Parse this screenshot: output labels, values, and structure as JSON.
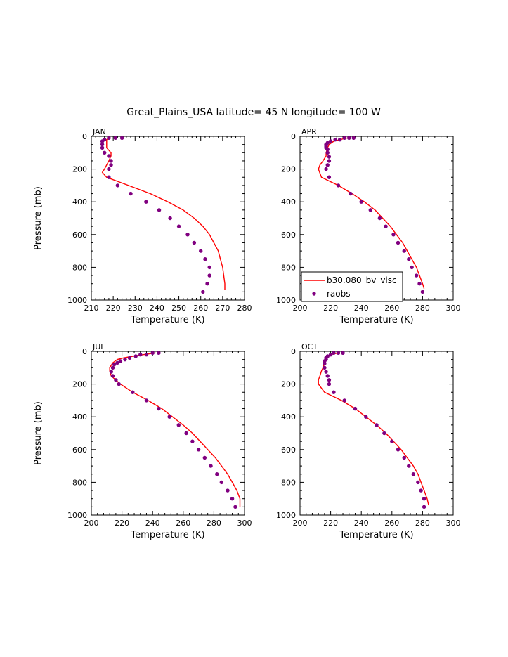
{
  "figure": {
    "title": "Great_Plains_USA  latitude= 45 N longitude= 100 W"
  },
  "colors": {
    "model": "#ff0000",
    "obs": "#800080",
    "axis": "#000000"
  },
  "legend": {
    "placement": "bottom-left of APR panel",
    "model_label": "b30.080_bv_visc",
    "obs_label": "raobs"
  },
  "chart_data": [
    {
      "type": "line",
      "panel": "JAN",
      "xlabel": "Temperature (K)",
      "ylabel": "Pressure (mb)",
      "xlim": [
        210,
        280
      ],
      "ylim": [
        1000,
        0
      ],
      "xticks": [
        210,
        220,
        230,
        240,
        250,
        260,
        270,
        280
      ],
      "yticks": [
        0,
        200,
        400,
        600,
        800,
        1000
      ],
      "series": [
        {
          "kind": "model",
          "points": [
            [
              218,
              10
            ],
            [
              217,
              20
            ],
            [
              217,
              30
            ],
            [
              217,
              50
            ],
            [
              217,
              70
            ],
            [
              219,
              100
            ],
            [
              219,
              120
            ],
            [
              218,
              150
            ],
            [
              216,
              200
            ],
            [
              215,
              220
            ],
            [
              217,
              250
            ],
            [
              227,
              300
            ],
            [
              237,
              350
            ],
            [
              245,
              400
            ],
            [
              252,
              450
            ],
            [
              257,
              500
            ],
            [
              261,
              550
            ],
            [
              264,
              600
            ],
            [
              266,
              650
            ],
            [
              268,
              700
            ],
            [
              269,
              750
            ],
            [
              270,
              800
            ],
            [
              270.5,
              850
            ],
            [
              271,
              900
            ],
            [
              271,
              940
            ]
          ]
        },
        {
          "kind": "obs",
          "points": [
            [
              224,
              10
            ],
            [
              221,
              10
            ],
            [
              218,
              10
            ],
            [
              216,
              20
            ],
            [
              215,
              30
            ],
            [
              215,
              50
            ],
            [
              215,
              70
            ],
            [
              216,
              100
            ],
            [
              218,
              120
            ],
            [
              219,
              150
            ],
            [
              219,
              175
            ],
            [
              218,
              200
            ],
            [
              218,
              250
            ],
            [
              222,
              300
            ],
            [
              228,
              350
            ],
            [
              235,
              400
            ],
            [
              241,
              450
            ],
            [
              246,
              500
            ],
            [
              250,
              550
            ],
            [
              254,
              600
            ],
            [
              257,
              650
            ],
            [
              260,
              700
            ],
            [
              262,
              750
            ],
            [
              264,
              800
            ],
            [
              264,
              850
            ],
            [
              263,
              900
            ],
            [
              261,
              950
            ]
          ]
        }
      ]
    },
    {
      "type": "line",
      "panel": "APR",
      "xlabel": "Temperature (K)",
      "ylabel": "",
      "xlim": [
        200,
        300
      ],
      "ylim": [
        1000,
        0
      ],
      "xticks": [
        200,
        220,
        240,
        260,
        280,
        300
      ],
      "yticks": [
        0,
        200,
        400,
        600,
        800,
        1000
      ],
      "series": [
        {
          "kind": "model",
          "points": [
            [
              231,
              10
            ],
            [
              226,
              20
            ],
            [
              222,
              30
            ],
            [
              219,
              50
            ],
            [
              218,
              70
            ],
            [
              217,
              100
            ],
            [
              217,
              120
            ],
            [
              215,
              150
            ],
            [
              213,
              175
            ],
            [
              212,
              200
            ],
            [
              214,
              250
            ],
            [
              225,
              300
            ],
            [
              234,
              350
            ],
            [
              242,
              400
            ],
            [
              249,
              450
            ],
            [
              254,
              500
            ],
            [
              259,
              550
            ],
            [
              263,
              600
            ],
            [
              267,
              650
            ],
            [
              270,
              700
            ],
            [
              273,
              750
            ],
            [
              276,
              800
            ],
            [
              278,
              850
            ],
            [
              280,
              900
            ],
            [
              281,
              930
            ]
          ]
        },
        {
          "kind": "obs",
          "points": [
            [
              235,
              10
            ],
            [
              232,
              10
            ],
            [
              229,
              10
            ],
            [
              226,
              20
            ],
            [
              223,
              20
            ],
            [
              220,
              30
            ],
            [
              218,
              40
            ],
            [
              217,
              50
            ],
            [
              217,
              60
            ],
            [
              217,
              70
            ],
            [
              218,
              80
            ],
            [
              218,
              100
            ],
            [
              219,
              125
            ],
            [
              219,
              150
            ],
            [
              218,
              175
            ],
            [
              217,
              200
            ],
            [
              219,
              250
            ],
            [
              225,
              300
            ],
            [
              233,
              350
            ],
            [
              240,
              400
            ],
            [
              246,
              450
            ],
            [
              252,
              500
            ],
            [
              256,
              550
            ],
            [
              261,
              600
            ],
            [
              264,
              650
            ],
            [
              268,
              700
            ],
            [
              271,
              750
            ],
            [
              273,
              800
            ],
            [
              276,
              850
            ],
            [
              278,
              900
            ],
            [
              280,
              950
            ]
          ]
        }
      ]
    },
    {
      "type": "line",
      "panel": "JUL",
      "xlabel": "Temperature (K)",
      "ylabel": "Pressure (mb)",
      "xlim": [
        200,
        300
      ],
      "ylim": [
        1000,
        0
      ],
      "xticks": [
        200,
        220,
        240,
        260,
        280,
        300
      ],
      "yticks": [
        0,
        200,
        400,
        600,
        800,
        1000
      ],
      "series": [
        {
          "kind": "model",
          "points": [
            [
              242,
              10
            ],
            [
              234,
              20
            ],
            [
              227,
              30
            ],
            [
              221,
              40
            ],
            [
              217,
              50
            ],
            [
              214,
              70
            ],
            [
              212,
              100
            ],
            [
              212,
              120
            ],
            [
              213,
              150
            ],
            [
              219,
              200
            ],
            [
              227,
              250
            ],
            [
              237,
              300
            ],
            [
              246,
              350
            ],
            [
              253,
              400
            ],
            [
              260,
              450
            ],
            [
              266,
              500
            ],
            [
              271,
              550
            ],
            [
              276,
              600
            ],
            [
              281,
              650
            ],
            [
              285,
              700
            ],
            [
              289,
              750
            ],
            [
              292,
              800
            ],
            [
              295,
              850
            ],
            [
              297,
              900
            ],
            [
              297,
              950
            ]
          ]
        },
        {
          "kind": "obs",
          "points": [
            [
              244,
              10
            ],
            [
              240,
              10
            ],
            [
              236,
              20
            ],
            [
              232,
              20
            ],
            [
              229,
              30
            ],
            [
              225,
              40
            ],
            [
              222,
              50
            ],
            [
              219,
              60
            ],
            [
              217,
              70
            ],
            [
              215,
              80
            ],
            [
              214,
              100
            ],
            [
              213,
              125
            ],
            [
              214,
              150
            ],
            [
              216,
              175
            ],
            [
              218,
              200
            ],
            [
              227,
              250
            ],
            [
              236,
              300
            ],
            [
              244,
              350
            ],
            [
              251,
              400
            ],
            [
              257,
              450
            ],
            [
              262,
              500
            ],
            [
              266,
              550
            ],
            [
              270,
              600
            ],
            [
              274,
              650
            ],
            [
              278,
              700
            ],
            [
              282,
              750
            ],
            [
              285,
              800
            ],
            [
              289,
              850
            ],
            [
              292,
              900
            ],
            [
              294,
              950
            ]
          ]
        }
      ]
    },
    {
      "type": "line",
      "panel": "OCT",
      "xlabel": "Temperature (K)",
      "ylabel": "",
      "xlim": [
        200,
        300
      ],
      "ylim": [
        1000,
        0
      ],
      "xticks": [
        200,
        220,
        240,
        260,
        280,
        300
      ],
      "yticks": [
        0,
        200,
        400,
        600,
        800,
        1000
      ],
      "series": [
        {
          "kind": "model",
          "points": [
            [
              225,
              10
            ],
            [
              220,
              20
            ],
            [
              218,
              30
            ],
            [
              217,
              50
            ],
            [
              216,
              70
            ],
            [
              215,
              100
            ],
            [
              214,
              120
            ],
            [
              213,
              150
            ],
            [
              212,
              175
            ],
            [
              212,
              200
            ],
            [
              216,
              250
            ],
            [
              227,
              300
            ],
            [
              236,
              350
            ],
            [
              243,
              400
            ],
            [
              250,
              450
            ],
            [
              256,
              500
            ],
            [
              261,
              550
            ],
            [
              266,
              600
            ],
            [
              270,
              650
            ],
            [
              274,
              700
            ],
            [
              277,
              750
            ],
            [
              279,
              800
            ],
            [
              281,
              850
            ],
            [
              283,
              900
            ],
            [
              284,
              940
            ]
          ]
        },
        {
          "kind": "obs",
          "points": [
            [
              228,
              10
            ],
            [
              225,
              10
            ],
            [
              222,
              10
            ],
            [
              220,
              20
            ],
            [
              218,
              30
            ],
            [
              217,
              40
            ],
            [
              217,
              50
            ],
            [
              216,
              60
            ],
            [
              216,
              75
            ],
            [
              216,
              100
            ],
            [
              217,
              125
            ],
            [
              218,
              150
            ],
            [
              219,
              175
            ],
            [
              219,
              200
            ],
            [
              222,
              250
            ],
            [
              229,
              300
            ],
            [
              236,
              350
            ],
            [
              243,
              400
            ],
            [
              250,
              450
            ],
            [
              255,
              500
            ],
            [
              260,
              550
            ],
            [
              264,
              600
            ],
            [
              268,
              650
            ],
            [
              271,
              700
            ],
            [
              274,
              750
            ],
            [
              277,
              800
            ],
            [
              279,
              850
            ],
            [
              281,
              900
            ],
            [
              281,
              950
            ]
          ]
        }
      ]
    }
  ]
}
